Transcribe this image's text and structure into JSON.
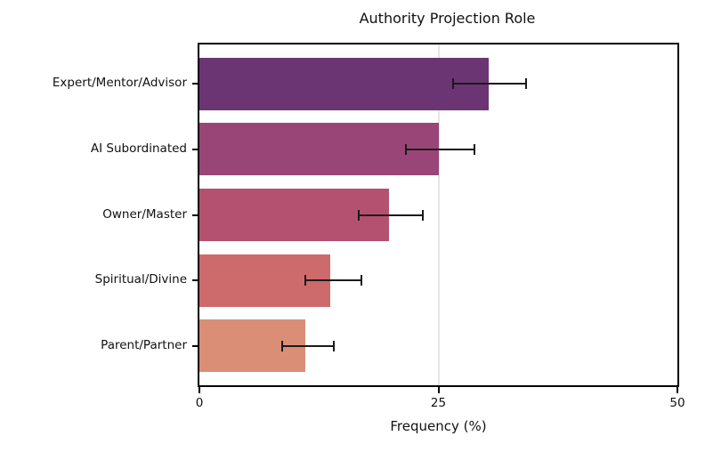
{
  "chart_data": {
    "type": "bar",
    "orientation": "horizontal",
    "title": "Authority Projection Role",
    "xlabel": "Frequency (%)",
    "ylabel": "",
    "xlim": [
      0,
      50
    ],
    "xticks": [
      0,
      25,
      50
    ],
    "grid": {
      "axis": "x",
      "color": "#e6e6e6",
      "interior_gridlines_at": [
        25
      ]
    },
    "legend": "none",
    "frame": {
      "color": "#000000",
      "full_box": true
    },
    "categories": [
      "Expert/Mentor/Advisor",
      "AI Subordinated",
      "Owner/Master",
      "Spiritual/Divine",
      "Parent/Partner"
    ],
    "series": [
      {
        "name": "Frequency (%)",
        "values": [
          30.3,
          25.0,
          19.8,
          13.7,
          11.1
        ],
        "error_low": [
          26.5,
          21.6,
          16.7,
          11.1,
          8.7
        ],
        "error_high": [
          34.2,
          28.8,
          23.4,
          16.9,
          14.1
        ],
        "colors": [
          "#6b3573",
          "#9a4577",
          "#b55170",
          "#cd6a6b",
          "#d98e75"
        ]
      }
    ],
    "error_bar_color": "#1a1a1a"
  }
}
